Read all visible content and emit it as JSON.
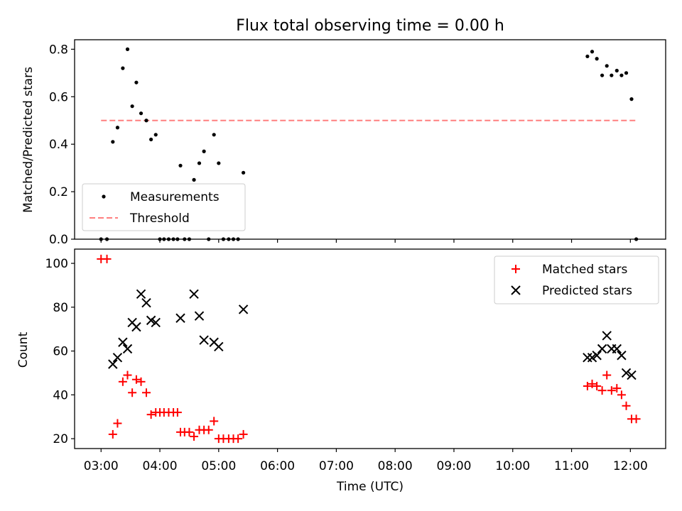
{
  "chart_data": [
    {
      "type": "scatter",
      "title": "Flux total observing time = 0.00 h",
      "xlabel": "",
      "ylabel": "Matched/Predicted stars",
      "ylim": [
        0,
        0.84
      ],
      "xlim_hours": [
        2.55,
        12.6
      ],
      "yticks": [
        0.0,
        0.2,
        0.4,
        0.6,
        0.8
      ],
      "ytick_labels": [
        "0.0",
        "0.2",
        "0.4",
        "0.6",
        "0.8"
      ],
      "grid": false,
      "legend_placement": "lower-left",
      "threshold": {
        "name": "Threshold",
        "y": 0.5,
        "x_range_hours": [
          3.0,
          12.1
        ],
        "color": "#ff7f7f"
      },
      "series": [
        {
          "name": "Measurements",
          "color": "#000000",
          "marker": "dot",
          "x_hours": [
            3.0,
            3.1,
            3.2,
            3.28,
            3.37,
            3.45,
            3.53,
            3.6,
            3.68,
            3.77,
            3.85,
            3.93,
            4.0,
            4.07,
            4.15,
            4.23,
            4.3,
            4.35,
            4.42,
            4.5,
            4.58,
            4.67,
            4.75,
            4.83,
            4.92,
            5.0,
            5.08,
            5.17,
            5.25,
            5.33,
            5.42,
            11.27,
            11.35,
            11.43,
            11.52,
            11.6,
            11.68,
            11.77,
            11.85,
            11.93,
            12.02,
            12.1
          ],
          "values": [
            0.0,
            0.0,
            0.41,
            0.47,
            0.72,
            0.8,
            0.56,
            0.66,
            0.53,
            0.5,
            0.42,
            0.44,
            0.0,
            0.0,
            0.0,
            0.0,
            0.0,
            0.31,
            0.0,
            0.0,
            0.25,
            0.32,
            0.37,
            0.0,
            0.44,
            0.32,
            0.0,
            0.0,
            0.0,
            0.0,
            0.28,
            0.77,
            0.79,
            0.76,
            0.69,
            0.73,
            0.69,
            0.71,
            0.69,
            0.7,
            0.59,
            0.0
          ]
        }
      ]
    },
    {
      "type": "scatter",
      "title": "",
      "xlabel": "Time (UTC)",
      "ylabel": "Count",
      "ylim": [
        15.5,
        106.5
      ],
      "xlim_hours": [
        2.55,
        12.6
      ],
      "yticks": [
        20,
        40,
        60,
        80,
        100
      ],
      "ytick_labels": [
        "20",
        "40",
        "60",
        "80",
        "100"
      ],
      "xticks_hours": [
        3,
        4,
        5,
        6,
        7,
        8,
        9,
        10,
        11,
        12
      ],
      "xtick_labels": [
        "03:00",
        "04:00",
        "05:00",
        "06:00",
        "07:00",
        "08:00",
        "09:00",
        "10:00",
        "11:00",
        "12:00"
      ],
      "grid": false,
      "legend_placement": "upper-right",
      "series": [
        {
          "name": "Matched stars",
          "color": "#ff0000",
          "marker": "plus",
          "x_hours": [
            3.0,
            3.1,
            3.2,
            3.28,
            3.37,
            3.45,
            3.53,
            3.6,
            3.68,
            3.77,
            3.85,
            3.93,
            4.0,
            4.07,
            4.15,
            4.23,
            4.3,
            4.35,
            4.42,
            4.5,
            4.58,
            4.67,
            4.75,
            4.83,
            4.92,
            5.0,
            5.08,
            5.17,
            5.25,
            5.33,
            5.42,
            11.27,
            11.35,
            11.43,
            11.52,
            11.6,
            11.68,
            11.77,
            11.85,
            11.93,
            12.02,
            12.1
          ],
          "values": [
            102,
            102,
            22,
            27,
            46,
            49,
            41,
            47,
            46,
            41,
            31,
            32,
            32,
            32,
            32,
            32,
            32,
            23,
            23,
            23,
            21,
            24,
            24,
            24,
            28,
            20,
            20,
            20,
            20,
            20,
            22,
            44,
            45,
            44,
            42,
            49,
            42,
            43,
            40,
            35,
            29,
            29
          ]
        },
        {
          "name": "Predicted stars",
          "color": "#000000",
          "marker": "cross",
          "x_hours": [
            3.2,
            3.28,
            3.37,
            3.45,
            3.53,
            3.6,
            3.68,
            3.77,
            3.85,
            3.93,
            4.35,
            4.58,
            4.67,
            4.75,
            4.92,
            5.0,
            5.42,
            11.27,
            11.35,
            11.43,
            11.52,
            11.6,
            11.68,
            11.77,
            11.85,
            11.93,
            12.02
          ],
          "values": [
            54,
            57,
            64,
            61,
            73,
            71,
            86,
            82,
            74,
            73,
            75,
            86,
            76,
            65,
            64,
            62,
            79,
            57,
            57,
            58,
            61,
            67,
            61,
            61,
            58,
            50,
            49
          ]
        }
      ]
    }
  ]
}
